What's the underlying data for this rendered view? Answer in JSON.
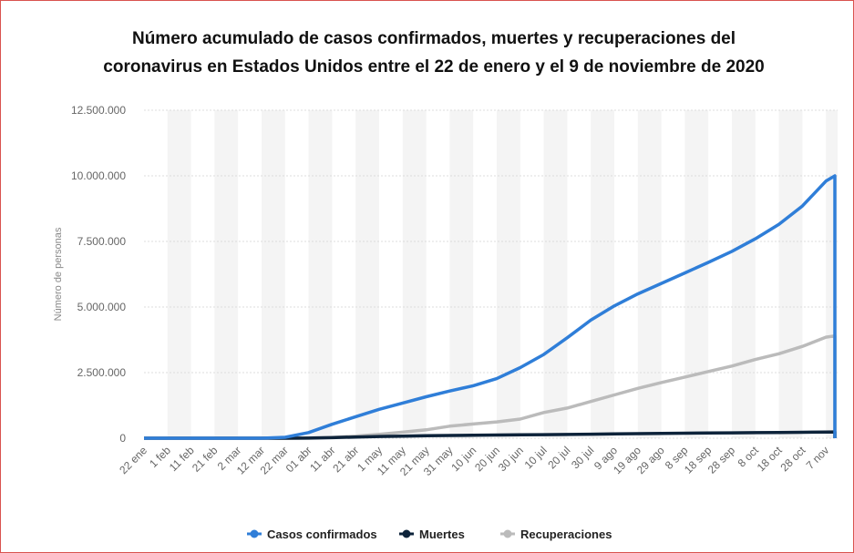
{
  "chart_data": {
    "type": "line",
    "title": "Número acumulado de casos confirmados, muertes y recuperaciones del coronavirus en Estados Unidos entre el 22 de enero y el 9 de noviembre de 2020",
    "y_label": "Número de personas",
    "categories": [
      "22 ene",
      "1 feb",
      "11 feb",
      "21 feb",
      "2 mar",
      "12 mar",
      "22 mar",
      "01 abr",
      "11 abr",
      "21 abr",
      "1 may",
      "11 may",
      "21 may",
      "31 may",
      "10 jun",
      "20 jun",
      "30 jun",
      "10 jul",
      "20 jul",
      "30 jul",
      "9 ago",
      "19 ago",
      "29 ago",
      "8 sep",
      "18 sep",
      "28 sep",
      "8 oct",
      "18 oct",
      "28 oct",
      "7 nov",
      null,
      null
    ],
    "series": [
      {
        "name": "Casos confirmados",
        "color": "#2f7ed8",
        "values": [
          0,
          0,
          0,
          0,
          100,
          1600,
          33000,
          215000,
          530000,
          820000,
          1100000,
          1340000,
          1580000,
          1800000,
          2000000,
          2270000,
          2690000,
          3190000,
          3830000,
          4500000,
          5040000,
          5500000,
          5900000,
          6300000,
          6700000,
          7120000,
          7600000,
          8150000,
          8850000,
          9800000,
          10000000,
          0
        ]
      },
      {
        "name": "Muertes",
        "color": "#0d233a",
        "values": [
          0,
          0,
          0,
          0,
          0,
          0,
          500,
          5000,
          20000,
          45000,
          65000,
          80000,
          95000,
          105000,
          113000,
          120000,
          127000,
          134000,
          141000,
          153000,
          163000,
          173000,
          182000,
          190000,
          198000,
          205000,
          212000,
          219000,
          227000,
          237000,
          238000,
          0
        ]
      },
      {
        "name": "Recuperaciones",
        "color": "#bbbbbb",
        "values": [
          0,
          0,
          0,
          0,
          0,
          0,
          200,
          9000,
          30000,
          80000,
          150000,
          230000,
          320000,
          460000,
          540000,
          620000,
          730000,
          980000,
          1150000,
          1400000,
          1650000,
          1900000,
          2120000,
          2330000,
          2540000,
          2750000,
          3000000,
          3220000,
          3500000,
          3850000,
          3900000,
          0
        ]
      }
    ],
    "ylim": [
      0,
      12500000
    ],
    "yticks": [
      0,
      {
        "value": 2500000,
        "label": "2.500.000"
      },
      {
        "value": 5000000,
        "label": "5.000.000"
      },
      {
        "value": 7500000,
        "label": "7.500.000"
      },
      {
        "value": 10000000,
        "label": "10.000.000"
      },
      {
        "value": 12500000,
        "label": "12.500.000"
      }
    ],
    "grid": true,
    "legend": "bottom"
  }
}
